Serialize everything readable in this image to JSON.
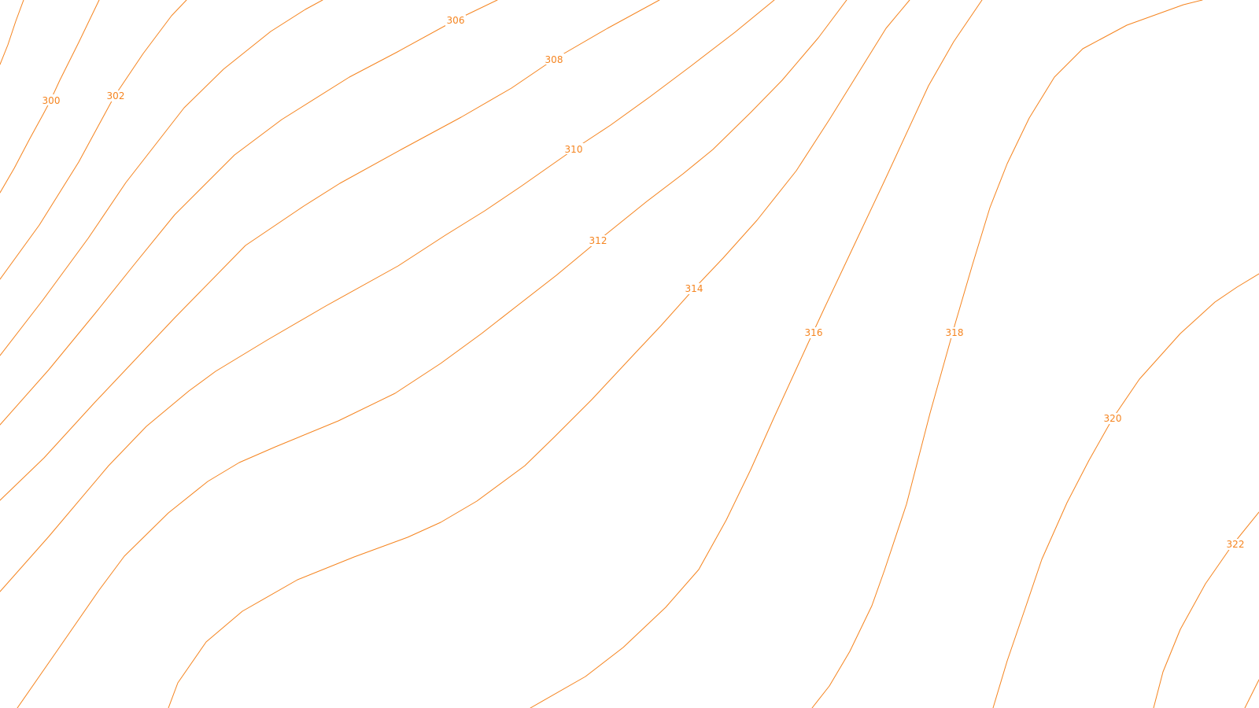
{
  "map": {
    "type": "contour-lines",
    "line_color": "#f5841f",
    "background_color": "#ffffff",
    "contours": [
      {
        "id": "c298",
        "elevation": null
      },
      {
        "id": "c300",
        "elevation": "300"
      },
      {
        "id": "c302",
        "elevation": "302"
      },
      {
        "id": "c304",
        "elevation": null
      },
      {
        "id": "c306",
        "elevation": "306"
      },
      {
        "id": "c308",
        "elevation": "308"
      },
      {
        "id": "c310",
        "elevation": "310"
      },
      {
        "id": "c312",
        "elevation": "312"
      },
      {
        "id": "c314",
        "elevation": "314"
      },
      {
        "id": "c316",
        "elevation": "316"
      },
      {
        "id": "c318",
        "elevation": "318"
      },
      {
        "id": "c320",
        "elevation": "320"
      },
      {
        "id": "c322",
        "elevation": "322"
      }
    ]
  }
}
